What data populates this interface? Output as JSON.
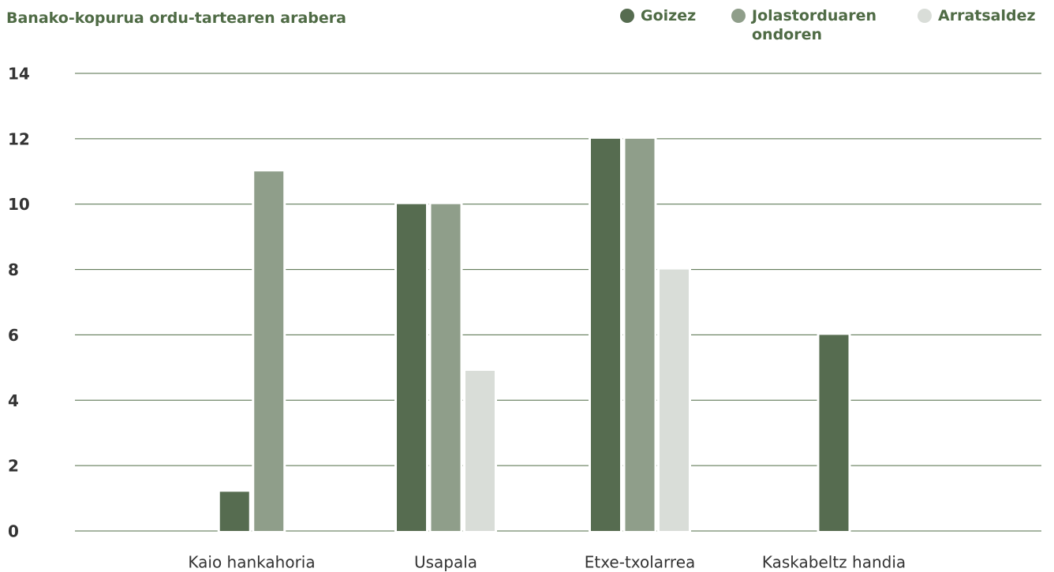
{
  "chart_data": {
    "type": "bar",
    "title": "Banako-kopurua ordu-tartearen arabera",
    "categories": [
      "Kaio hankahoria",
      "Usapala",
      "Etxe-txolarrea",
      "Kaskabeltz handia"
    ],
    "series": [
      {
        "name": "Goizez",
        "color": "#566c50",
        "values": [
          1.2,
          10,
          12,
          6
        ]
      },
      {
        "name": "Jolastorduaren ondoren",
        "color": "#8f9e8a",
        "values": [
          11,
          10,
          12,
          0
        ]
      },
      {
        "name": "Arratsaldez",
        "color": "#d9ddd8",
        "values": [
          0,
          4.9,
          8,
          0
        ]
      }
    ],
    "ylim": [
      0,
      14
    ],
    "yticks": [
      0,
      2,
      4,
      6,
      8,
      10,
      12,
      14
    ],
    "grid": true
  }
}
